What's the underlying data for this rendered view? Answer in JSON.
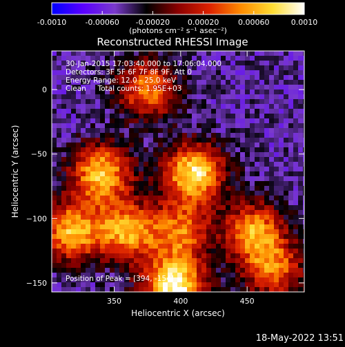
{
  "chart_data": {
    "type": "heatmap",
    "title": "Reconstructed RHESSI Image",
    "xlabel": "Heliocentric X (arcsec)",
    "ylabel": "Heliocentric Y (arcsec)",
    "xlim": [
      303,
      493
    ],
    "ylim": [
      -157,
      30
    ],
    "xticks": [
      350,
      400,
      450
    ],
    "yticks": [
      0,
      -50,
      -100,
      -150
    ],
    "grid": false,
    "colorbar": {
      "location": "top",
      "range": [
        -0.001,
        0.001
      ],
      "ticks": [
        "-0.0010",
        "-0.00060",
        "-0.00020",
        "0.00020",
        "0.00060",
        "0.0010"
      ],
      "units": "(photons cm⁻² s⁻¹ asec⁻²)",
      "colors": [
        "#0000ff",
        "#5a00ff",
        "#7a3acc",
        "#000000",
        "#8b0000",
        "#dd2200",
        "#ff8c00",
        "#ffdd33",
        "#ffffff"
      ]
    },
    "annotations": [
      "30-Jan-2015 17:03:40.000 to 17:06:04.000",
      "Detectors: 3F 5F 6F 7F 8F 9F, Att 0",
      "Energy Range: 12.0 - 25.0 keV",
      "Clean     Total counts: 1.95E+03",
      "Position of Peak = [394, -154]"
    ],
    "sources": [
      {
        "x": 410,
        "y": -65,
        "peak": 0.00085
      },
      {
        "x": 395,
        "y": -153,
        "peak": 0.001
      },
      {
        "x": 340,
        "y": -65,
        "peak": 0.0007
      },
      {
        "x": 318,
        "y": -110,
        "peak": 0.00065
      },
      {
        "x": 360,
        "y": -110,
        "peak": 0.0006
      },
      {
        "x": 455,
        "y": -110,
        "peak": 0.00055
      },
      {
        "x": 470,
        "y": -140,
        "peak": 0.0004
      },
      {
        "x": 375,
        "y": 0,
        "peak": 0.00045
      },
      {
        "x": 400,
        "y": -110,
        "peak": 0.0004
      }
    ]
  },
  "footer": {
    "date": "18-May-2022 13:51"
  }
}
